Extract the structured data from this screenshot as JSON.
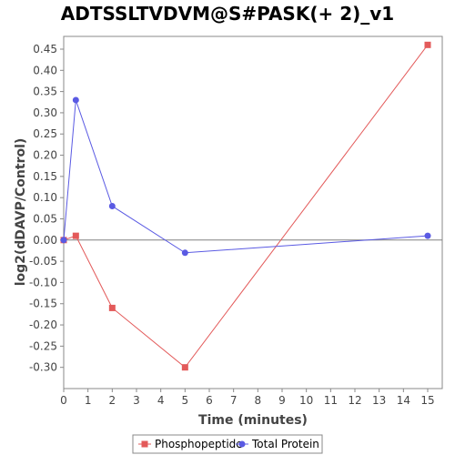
{
  "chart_data": {
    "type": "line",
    "title": "ADTSSLTVDVM@S#PASK(+ 2)_v1",
    "xlabel": "Time (minutes)",
    "ylabel": "log2(dDAVP/Control)",
    "xlim": [
      0,
      15.6
    ],
    "ylim": [
      -0.35,
      0.48
    ],
    "xticks": [
      0,
      1,
      2,
      3,
      4,
      5,
      6,
      7,
      8,
      9,
      10,
      11,
      12,
      13,
      14,
      15
    ],
    "yticks": [
      -0.3,
      -0.25,
      -0.2,
      -0.15,
      -0.1,
      -0.05,
      0.0,
      0.05,
      0.1,
      0.15,
      0.2,
      0.25,
      0.3,
      0.35,
      0.4,
      0.45
    ],
    "ytick_labels": [
      "-0.30",
      "-0.25",
      "-0.20",
      "-0.15",
      "-0.10",
      "-0.05",
      "0.00",
      "0.05",
      "0.10",
      "0.15",
      "0.20",
      "0.25",
      "0.30",
      "0.35",
      "0.40",
      "0.45"
    ],
    "legend_position": "bottom",
    "grid": false,
    "series": [
      {
        "name": "Phosphopeptide",
        "color": "#e35a5a",
        "marker": "square",
        "x": [
          0,
          0.5,
          2,
          5,
          15
        ],
        "y": [
          0.0,
          0.01,
          -0.16,
          -0.3,
          0.46
        ]
      },
      {
        "name": "Total Protein",
        "color": "#5a5ae3",
        "marker": "circle",
        "x": [
          0,
          0.5,
          2,
          5,
          15
        ],
        "y": [
          0.0,
          0.33,
          0.08,
          -0.03,
          0.01
        ]
      }
    ]
  }
}
